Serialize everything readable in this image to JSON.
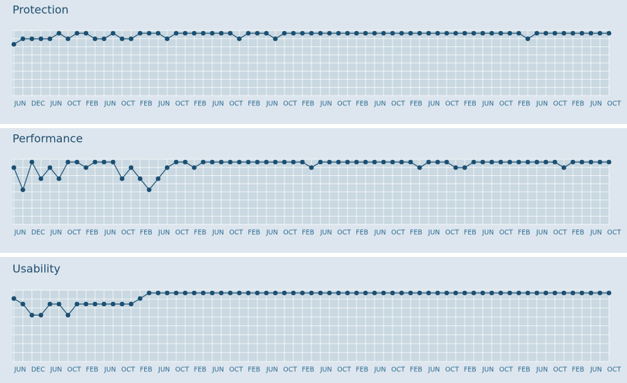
{
  "chart_data": [
    {
      "type": "line",
      "title": "Protection",
      "color": "#1b4f72",
      "ylim": [
        0,
        6.25
      ],
      "x_labels": [
        "JUN",
        "DEC",
        "JUN",
        "OCT",
        "FEB",
        "JUN",
        "OCT",
        "FEB",
        "JUN",
        "OCT",
        "FEB",
        "JUN",
        "OCT",
        "FEB",
        "JUN",
        "OCT",
        "FEB",
        "JUN",
        "OCT",
        "FEB",
        "JUN",
        "OCT",
        "FEB",
        "JUN",
        "OCT",
        "FEB",
        "JUN",
        "OCT",
        "FEB",
        "JUN",
        "OCT",
        "FEB",
        "JUN",
        "OCT"
      ],
      "values": [
        5,
        5.5,
        5.5,
        5.5,
        5.5,
        6,
        5.5,
        6,
        6,
        5.5,
        5.5,
        6,
        5.5,
        5.5,
        6,
        6,
        6,
        5.5,
        6,
        6,
        6,
        6,
        6,
        6,
        6,
        5.5,
        6,
        6,
        6,
        5.5,
        6,
        6,
        6,
        6,
        6,
        6,
        6,
        6,
        6,
        6,
        6,
        6,
        6,
        6,
        6,
        6,
        6,
        6,
        6,
        6,
        6,
        6,
        6,
        6,
        6,
        6,
        6,
        5.5,
        6,
        6,
        6,
        6,
        6,
        6,
        6,
        6,
        6
      ]
    },
    {
      "type": "line",
      "title": "Performance",
      "color": "#1b4f72",
      "ylim": [
        0,
        6.25
      ],
      "x_labels": [
        "JUN",
        "DEC",
        "JUN",
        "OCT",
        "FEB",
        "JUN",
        "OCT",
        "FEB",
        "JUN",
        "OCT",
        "FEB",
        "JUN",
        "OCT",
        "FEB",
        "JUN",
        "OCT",
        "FEB",
        "JUN",
        "OCT",
        "FEB",
        "JUN",
        "OCT",
        "FEB",
        "JUN",
        "OCT",
        "FEB",
        "JUN",
        "OCT",
        "FEB",
        "JUN",
        "OCT",
        "FEB",
        "JUN",
        "OCT"
      ],
      "values": [
        5.5,
        3.5,
        6,
        4.5,
        5.5,
        4.5,
        6,
        6,
        5.5,
        6,
        6,
        6,
        4.5,
        5.5,
        4.5,
        3.5,
        4.5,
        5.5,
        6,
        6,
        5.5,
        6,
        6,
        6,
        6,
        6,
        6,
        6,
        6,
        6,
        6,
        6,
        6,
        5.5,
        6,
        6,
        6,
        6,
        6,
        6,
        6,
        6,
        6,
        6,
        6,
        5.5,
        6,
        6,
        6,
        5.5,
        5.5,
        6,
        6,
        6,
        6,
        6,
        6,
        6,
        6,
        6,
        6,
        5.5,
        6,
        6,
        6,
        6,
        6
      ]
    },
    {
      "type": "line",
      "title": "Usability",
      "color": "#1b4f72",
      "ylim": [
        0,
        6.25
      ],
      "x_labels": [
        "JUN",
        "DEC",
        "JUN",
        "OCT",
        "FEB",
        "JUN",
        "OCT",
        "FEB",
        "JUN",
        "OCT",
        "FEB",
        "JUN",
        "OCT",
        "FEB",
        "JUN",
        "OCT",
        "FEB",
        "JUN",
        "OCT",
        "FEB",
        "JUN",
        "OCT",
        "FEB",
        "JUN",
        "OCT",
        "FEB",
        "JUN",
        "OCT",
        "FEB",
        "JUN",
        "OCT",
        "FEB",
        "JUN",
        "OCT"
      ],
      "values": [
        5.5,
        5,
        4,
        4,
        5,
        5,
        4,
        5,
        5,
        5,
        5,
        5,
        5,
        5,
        5.5,
        6,
        6,
        6,
        6,
        6,
        6,
        6,
        6,
        6,
        6,
        6,
        6,
        6,
        6,
        6,
        6,
        6,
        6,
        6,
        6,
        6,
        6,
        6,
        6,
        6,
        6,
        6,
        6,
        6,
        6,
        6,
        6,
        6,
        6,
        6,
        6,
        6,
        6,
        6,
        6,
        6,
        6,
        6,
        6,
        6,
        6,
        6,
        6,
        6,
        6,
        6,
        6
      ]
    }
  ]
}
